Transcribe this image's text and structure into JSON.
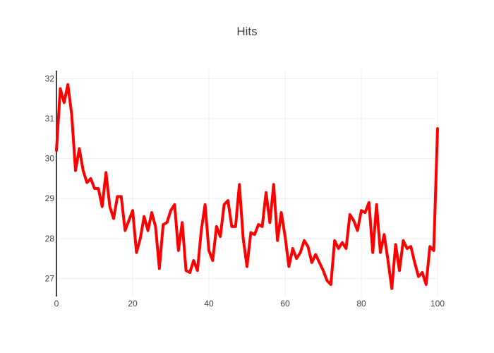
{
  "chart_data": {
    "type": "line",
    "title": "Hits",
    "xlabel": "",
    "ylabel": "",
    "xlim": [
      0,
      100
    ],
    "ylim": [
      26.55,
      32.2
    ],
    "xticks": [
      0,
      20,
      40,
      60,
      80,
      100
    ],
    "yticks": [
      27,
      28,
      29,
      30,
      31,
      32
    ],
    "grid": true,
    "colors": {
      "line": "#ff0000",
      "grid": "#eeeeee",
      "axis": "#444444",
      "text": "#444444"
    },
    "series": [
      {
        "name": "",
        "x": [
          0,
          1,
          2,
          3,
          4,
          5,
          6,
          7,
          8,
          9,
          10,
          11,
          12,
          13,
          14,
          15,
          16,
          17,
          18,
          19,
          20,
          21,
          22,
          23,
          24,
          25,
          26,
          27,
          28,
          29,
          30,
          31,
          32,
          33,
          34,
          35,
          36,
          37,
          38,
          39,
          40,
          41,
          42,
          43,
          44,
          45,
          46,
          47,
          48,
          49,
          50,
          51,
          52,
          53,
          54,
          55,
          56,
          57,
          58,
          59,
          60,
          61,
          62,
          63,
          64,
          65,
          66,
          67,
          68,
          69,
          70,
          71,
          72,
          73,
          74,
          75,
          76,
          77,
          78,
          79,
          80,
          81,
          82,
          83,
          84,
          85,
          86,
          87,
          88,
          89,
          90,
          91,
          92,
          93,
          94,
          95,
          96,
          97,
          98,
          99,
          100
        ],
        "y": [
          30.2,
          31.75,
          31.4,
          31.85,
          31.1,
          29.7,
          30.25,
          29.7,
          29.4,
          29.5,
          29.25,
          29.25,
          28.8,
          29.65,
          28.8,
          28.5,
          29.05,
          29.05,
          28.2,
          28.45,
          28.7,
          27.65,
          28.0,
          28.55,
          28.2,
          28.65,
          28.3,
          27.25,
          28.35,
          28.4,
          28.7,
          28.85,
          27.7,
          28.4,
          27.2,
          27.15,
          27.45,
          27.2,
          28.2,
          28.85,
          27.7,
          27.45,
          28.3,
          28.05,
          28.85,
          28.95,
          28.3,
          28.3,
          29.35,
          28.0,
          27.3,
          28.15,
          28.1,
          28.35,
          28.3,
          29.15,
          28.4,
          29.35,
          27.95,
          28.65,
          28.05,
          27.3,
          27.75,
          27.5,
          27.65,
          27.95,
          27.8,
          27.4,
          27.6,
          27.4,
          27.2,
          26.95,
          26.85,
          27.95,
          27.75,
          27.9,
          27.75,
          28.6,
          28.45,
          28.2,
          28.7,
          28.65,
          28.9,
          27.65,
          28.85,
          27.65,
          28.1,
          27.45,
          26.75,
          27.85,
          27.2,
          27.95,
          27.75,
          27.8,
          27.4,
          27.05,
          27.15,
          26.85,
          27.8,
          27.7,
          30.75
        ]
      }
    ]
  }
}
